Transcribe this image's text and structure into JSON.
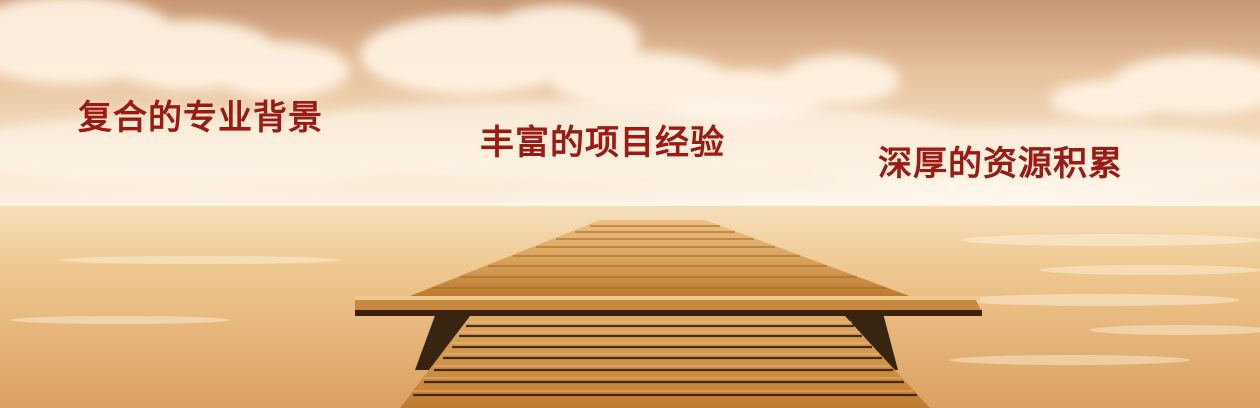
{
  "banner": {
    "slogans": [
      "复合的专业背景",
      "丰富的项目经验",
      "深厚的资源积累"
    ]
  },
  "colors": {
    "slogan_text": "#9a1b16",
    "sky_top": "#c79673",
    "horizon": "#fbf1e2",
    "sea": "#e6b06d",
    "pier_wood": "#c98a42",
    "pier_shadow": "#231406"
  }
}
